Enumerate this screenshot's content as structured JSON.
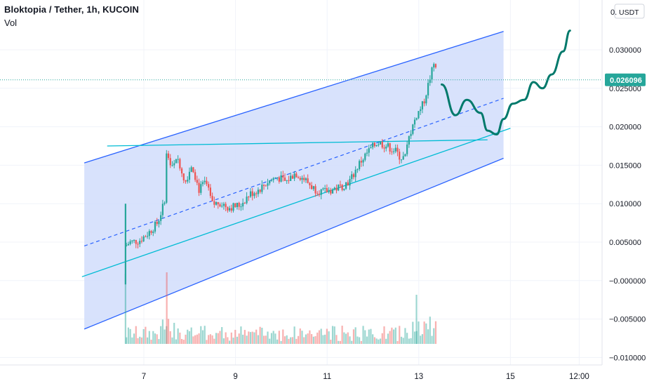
{
  "header": {
    "title": "Bloktopia / Tether, 1h, KUCOIN",
    "volume_label": "Vol"
  },
  "price_scale": {
    "currency_button": "USDT",
    "currency_prefix": "0.",
    "last_price_label": "0.026096"
  },
  "colors": {
    "up": "#26a69a",
    "down": "#ef5350",
    "channel_fill": "#d1ddfb",
    "channel_border": "#2962ff",
    "trend_line": "#00bcd4",
    "projection": "#00796b",
    "grid": "#f0f3fa"
  },
  "chart_data": {
    "type": "candlestick",
    "title": "Bloktopia / Tether, 1h, KUCOIN",
    "y_ticks": [
      "0.030000",
      "0.025000",
      "0.020000",
      "0.015000",
      "0.010000",
      "0.005000",
      "−0.000000",
      "−0.005000",
      "−0.010000"
    ],
    "y_tick_values": [
      0.03,
      0.025,
      0.02,
      0.015,
      0.01,
      0.005,
      0.0,
      -0.005,
      -0.01
    ],
    "x_ticks": [
      "7",
      "9",
      "11",
      "13",
      "15",
      "12:00"
    ],
    "ylim": [
      -0.0115,
      0.0335
    ],
    "last_price": 0.026096,
    "price_path": [
      [
        6.6,
        0.0045
      ],
      [
        6.7,
        0.005
      ],
      [
        6.9,
        0.0052
      ],
      [
        7.1,
        0.0062
      ],
      [
        7.3,
        0.0075
      ],
      [
        7.45,
        0.0102
      ],
      [
        7.5,
        0.017
      ],
      [
        7.6,
        0.0145
      ],
      [
        7.75,
        0.0158
      ],
      [
        7.9,
        0.0128
      ],
      [
        8.05,
        0.0152
      ],
      [
        8.2,
        0.0118
      ],
      [
        8.35,
        0.0128
      ],
      [
        8.5,
        0.0098
      ],
      [
        8.65,
        0.0102
      ],
      [
        8.85,
        0.0095
      ],
      [
        9.1,
        0.0098
      ],
      [
        9.3,
        0.0112
      ],
      [
        9.5,
        0.0118
      ],
      [
        9.7,
        0.0128
      ],
      [
        9.9,
        0.0135
      ],
      [
        10.1,
        0.0128
      ],
      [
        10.3,
        0.014
      ],
      [
        10.5,
        0.0132
      ],
      [
        10.7,
        0.012
      ],
      [
        10.9,
        0.0115
      ],
      [
        11.1,
        0.0118
      ],
      [
        11.3,
        0.0122
      ],
      [
        11.5,
        0.013
      ],
      [
        11.7,
        0.0152
      ],
      [
        11.9,
        0.0168
      ],
      [
        12.1,
        0.018
      ],
      [
        12.3,
        0.0175
      ],
      [
        12.5,
        0.0168
      ],
      [
        12.6,
        0.016
      ],
      [
        12.7,
        0.016
      ],
      [
        12.8,
        0.019
      ],
      [
        12.95,
        0.0215
      ],
      [
        13.1,
        0.023
      ],
      [
        13.25,
        0.0265
      ],
      [
        13.35,
        0.0285
      ],
      [
        13.4,
        0.0275
      ]
    ],
    "drawings": {
      "parallel_channel": {
        "start": {
          "x": 5.7,
          "top": 0.0153,
          "mid": 0.0045,
          "bottom": -0.0063
        },
        "end": {
          "x": 14.85,
          "top": 0.0324,
          "mid": 0.0237,
          "bottom": 0.0159
        }
      },
      "trend_lines": [
        {
          "from": [
            5.65,
            0.0005
          ],
          "to": [
            15.0,
            0.0198
          ]
        },
        {
          "from": [
            6.2,
            0.0175
          ],
          "to": [
            14.5,
            0.0183
          ]
        }
      ],
      "projection_path": [
        [
          13.5,
          0.0255
        ],
        [
          13.8,
          0.0215
        ],
        [
          14.05,
          0.0235
        ],
        [
          14.35,
          0.0218
        ],
        [
          14.5,
          0.0195
        ],
        [
          14.7,
          0.019
        ],
        [
          14.85,
          0.021
        ],
        [
          15.05,
          0.023
        ],
        [
          15.3,
          0.0235
        ],
        [
          15.5,
          0.0258
        ],
        [
          15.7,
          0.025
        ],
        [
          15.9,
          0.0268
        ],
        [
          16.15,
          0.0298
        ],
        [
          16.3,
          0.0325
        ]
      ]
    }
  }
}
